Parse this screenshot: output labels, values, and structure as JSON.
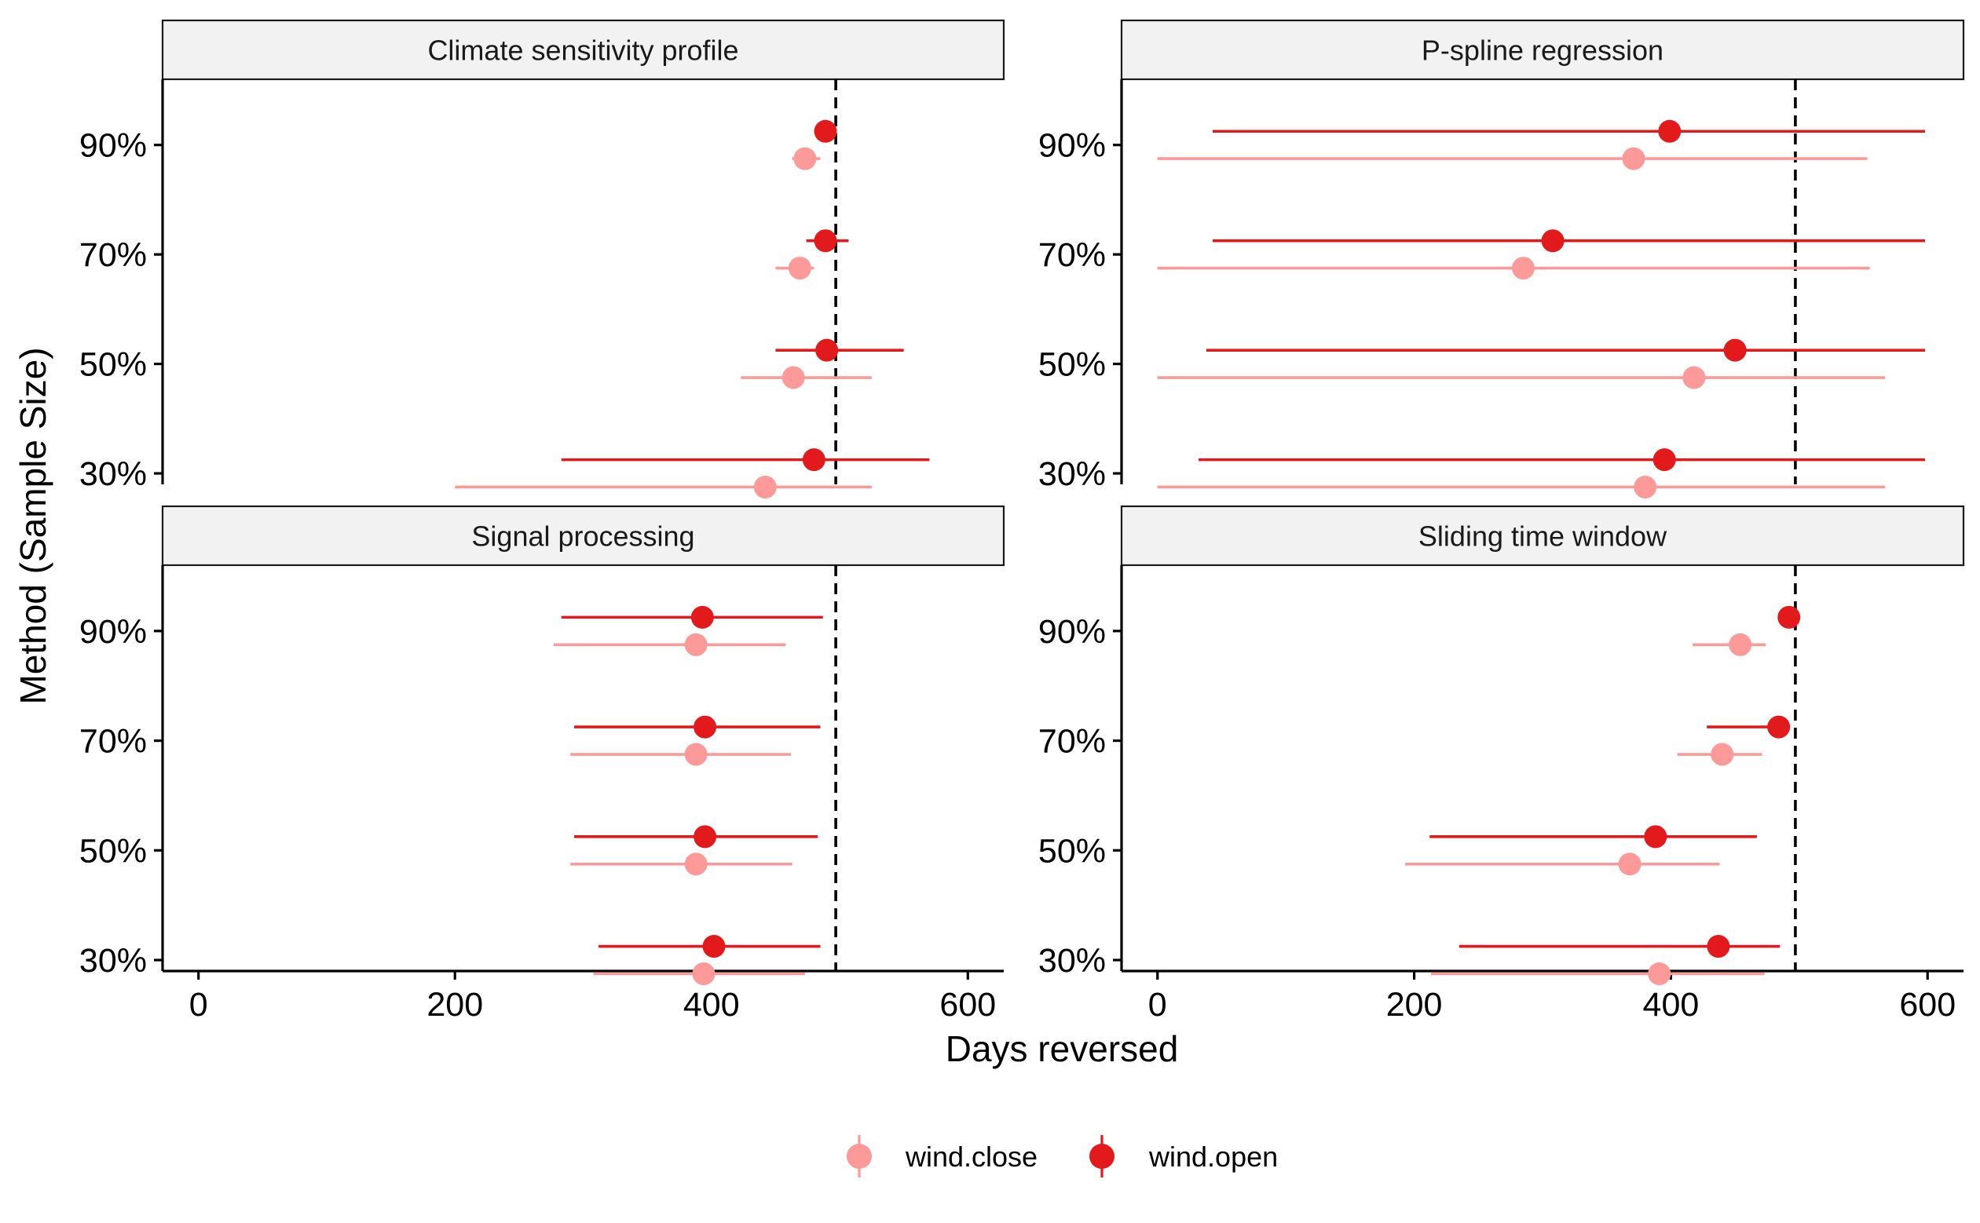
{
  "chart_data": {
    "type": "scatter",
    "xlabel": "Days reversed",
    "ylabel": "Method (Sample Size)",
    "xlim": [
      -28,
      628
    ],
    "xticks": [
      0,
      200,
      400,
      600
    ],
    "categories": [
      "30%",
      "50%",
      "70%",
      "90%"
    ],
    "reference_line_x": 497,
    "legend": {
      "placement": "bottom",
      "entries": [
        {
          "name": "wind.close",
          "color": "#fb9a99"
        },
        {
          "name": "wind.open",
          "color": "#e31a1c"
        }
      ]
    },
    "panels": [
      {
        "title": "Climate sensitivity profile",
        "series": [
          {
            "name": "wind.close",
            "color": "#fb9a99",
            "points": [
              {
                "y": "30%",
                "x": 442,
                "lo": 200,
                "hi": 525
              },
              {
                "y": "50%",
                "x": 464,
                "lo": 423,
                "hi": 525
              },
              {
                "y": "70%",
                "x": 469,
                "lo": 450,
                "hi": 480
              },
              {
                "y": "90%",
                "x": 473,
                "lo": 463,
                "hi": 485
              }
            ]
          },
          {
            "name": "wind.open",
            "color": "#e31a1c",
            "points": [
              {
                "y": "30%",
                "x": 480,
                "lo": 283,
                "hi": 570
              },
              {
                "y": "50%",
                "x": 490,
                "lo": 450,
                "hi": 550
              },
              {
                "y": "70%",
                "x": 489,
                "lo": 474,
                "hi": 507
              },
              {
                "y": "90%",
                "x": 489,
                "lo": 489,
                "hi": 489
              }
            ]
          }
        ]
      },
      {
        "title": "P-spline regression",
        "series": [
          {
            "name": "wind.close",
            "color": "#fb9a99",
            "points": [
              {
                "y": "30%",
                "x": 380,
                "lo": 0,
                "hi": 567
              },
              {
                "y": "50%",
                "x": 418,
                "lo": 0,
                "hi": 567
              },
              {
                "y": "70%",
                "x": 285,
                "lo": 0,
                "hi": 555
              },
              {
                "y": "90%",
                "x": 371,
                "lo": 0,
                "hi": 553
              }
            ]
          },
          {
            "name": "wind.open",
            "color": "#e31a1c",
            "points": [
              {
                "y": "30%",
                "x": 395,
                "lo": 32,
                "hi": 598
              },
              {
                "y": "50%",
                "x": 450,
                "lo": 38,
                "hi": 598
              },
              {
                "y": "70%",
                "x": 308,
                "lo": 43,
                "hi": 598
              },
              {
                "y": "90%",
                "x": 399,
                "lo": 43,
                "hi": 598
              }
            ]
          }
        ]
      },
      {
        "title": "Signal processing",
        "series": [
          {
            "name": "wind.close",
            "color": "#fb9a99",
            "points": [
              {
                "y": "30%",
                "x": 394,
                "lo": 308,
                "hi": 473
              },
              {
                "y": "50%",
                "x": 388,
                "lo": 290,
                "hi": 463
              },
              {
                "y": "70%",
                "x": 388,
                "lo": 290,
                "hi": 462
              },
              {
                "y": "90%",
                "x": 388,
                "lo": 277,
                "hi": 458
              }
            ]
          },
          {
            "name": "wind.open",
            "color": "#e31a1c",
            "points": [
              {
                "y": "30%",
                "x": 402,
                "lo": 312,
                "hi": 485
              },
              {
                "y": "50%",
                "x": 395,
                "lo": 293,
                "hi": 483
              },
              {
                "y": "70%",
                "x": 395,
                "lo": 293,
                "hi": 485
              },
              {
                "y": "90%",
                "x": 393,
                "lo": 283,
                "hi": 487
              }
            ]
          }
        ]
      },
      {
        "title": "Sliding time window",
        "series": [
          {
            "name": "wind.close",
            "color": "#fb9a99",
            "points": [
              {
                "y": "30%",
                "x": 391,
                "lo": 213,
                "hi": 473
              },
              {
                "y": "50%",
                "x": 368,
                "lo": 193,
                "hi": 438
              },
              {
                "y": "70%",
                "x": 440,
                "lo": 405,
                "hi": 471
              },
              {
                "y": "90%",
                "x": 454,
                "lo": 417,
                "hi": 474
              }
            ]
          },
          {
            "name": "wind.open",
            "color": "#e31a1c",
            "points": [
              {
                "y": "30%",
                "x": 437,
                "lo": 235,
                "hi": 485
              },
              {
                "y": "50%",
                "x": 388,
                "lo": 212,
                "hi": 467
              },
              {
                "y": "70%",
                "x": 484,
                "lo": 428,
                "hi": 484
              },
              {
                "y": "90%",
                "x": 492,
                "lo": 492,
                "hi": 492
              }
            ]
          }
        ]
      }
    ]
  }
}
